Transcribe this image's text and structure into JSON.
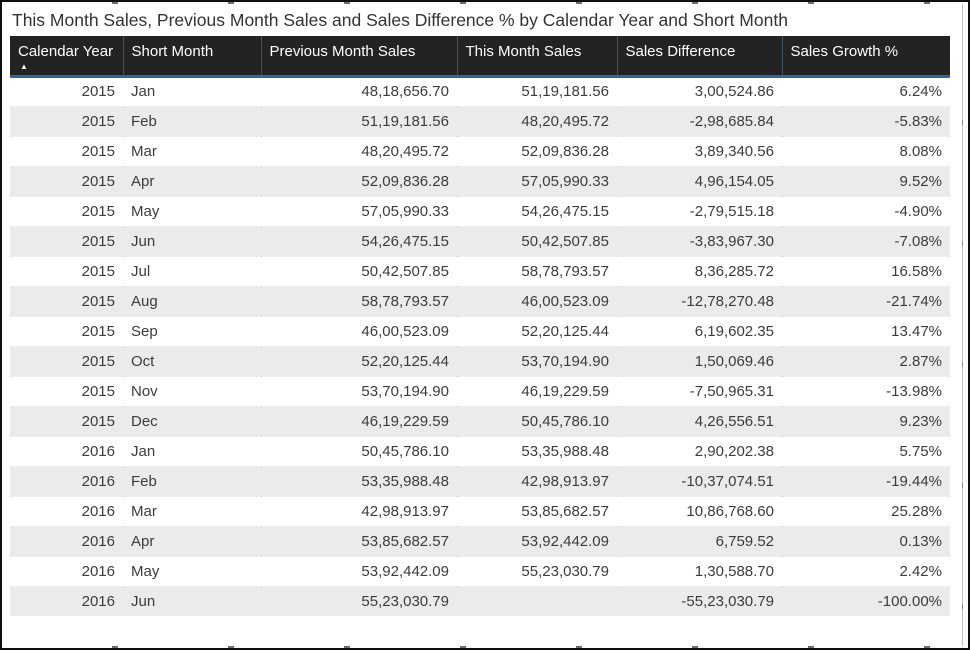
{
  "title": "This Month Sales, Previous Month Sales and Sales Difference % by Calendar Year and Short Month",
  "sort_indicator": "▲",
  "colors": {
    "header_bg": "#232323",
    "header_text": "#ffffff",
    "accent_underline": "#33669e",
    "row_alt_bg": "#ebebeb",
    "body_text": "#3c3c3c",
    "frame_border": "#0e0e0e"
  },
  "chart_data": {
    "type": "table",
    "title": "This Month Sales, Previous Month Sales and Sales Difference % by Calendar Year and Short Month",
    "columns": [
      "Calendar Year",
      "Short Month",
      "Previous Month Sales",
      "This Month Sales",
      "Sales Difference",
      "Sales Growth %"
    ],
    "column_align": [
      "right",
      "left",
      "right",
      "right",
      "right",
      "right"
    ],
    "sorted_column": "Calendar Year",
    "sort_direction": "ascending",
    "rows": [
      [
        "2015",
        "Jan",
        "48,18,656.70",
        "51,19,181.56",
        "3,00,524.86",
        "6.24%"
      ],
      [
        "2015",
        "Feb",
        "51,19,181.56",
        "48,20,495.72",
        "-2,98,685.84",
        "-5.83%"
      ],
      [
        "2015",
        "Mar",
        "48,20,495.72",
        "52,09,836.28",
        "3,89,340.56",
        "8.08%"
      ],
      [
        "2015",
        "Apr",
        "52,09,836.28",
        "57,05,990.33",
        "4,96,154.05",
        "9.52%"
      ],
      [
        "2015",
        "May",
        "57,05,990.33",
        "54,26,475.15",
        "-2,79,515.18",
        "-4.90%"
      ],
      [
        "2015",
        "Jun",
        "54,26,475.15",
        "50,42,507.85",
        "-3,83,967.30",
        "-7.08%"
      ],
      [
        "2015",
        "Jul",
        "50,42,507.85",
        "58,78,793.57",
        "8,36,285.72",
        "16.58%"
      ],
      [
        "2015",
        "Aug",
        "58,78,793.57",
        "46,00,523.09",
        "-12,78,270.48",
        "-21.74%"
      ],
      [
        "2015",
        "Sep",
        "46,00,523.09",
        "52,20,125.44",
        "6,19,602.35",
        "13.47%"
      ],
      [
        "2015",
        "Oct",
        "52,20,125.44",
        "53,70,194.90",
        "1,50,069.46",
        "2.87%"
      ],
      [
        "2015",
        "Nov",
        "53,70,194.90",
        "46,19,229.59",
        "-7,50,965.31",
        "-13.98%"
      ],
      [
        "2015",
        "Dec",
        "46,19,229.59",
        "50,45,786.10",
        "4,26,556.51",
        "9.23%"
      ],
      [
        "2016",
        "Jan",
        "50,45,786.10",
        "53,35,988.48",
        "2,90,202.38",
        "5.75%"
      ],
      [
        "2016",
        "Feb",
        "53,35,988.48",
        "42,98,913.97",
        "-10,37,074.51",
        "-19.44%"
      ],
      [
        "2016",
        "Mar",
        "42,98,913.97",
        "53,85,682.57",
        "10,86,768.60",
        "25.28%"
      ],
      [
        "2016",
        "Apr",
        "53,85,682.57",
        "53,92,442.09",
        "6,759.52",
        "0.13%"
      ],
      [
        "2016",
        "May",
        "53,92,442.09",
        "55,23,030.79",
        "1,30,588.70",
        "2.42%"
      ],
      [
        "2016",
        "Jun",
        "55,23,030.79",
        "",
        "-55,23,030.79",
        "-100.00%"
      ]
    ]
  }
}
